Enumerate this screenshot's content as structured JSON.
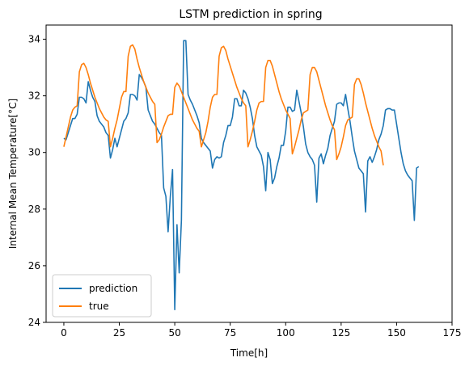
{
  "chart_data": {
    "type": "line",
    "title": "LSTM prediction in spring",
    "xlabel": "Time[h]",
    "ylabel": "Internal Mean Temperature[°C]",
    "xlim": [
      -8,
      175
    ],
    "ylim": [
      24,
      34.5
    ],
    "xticks": [
      0,
      25,
      50,
      75,
      100,
      125,
      150,
      175
    ],
    "yticks": [
      24,
      26,
      28,
      30,
      32,
      34
    ],
    "legend_position": "lower-left",
    "grid": false,
    "series": [
      {
        "name": "prediction",
        "color": "#1f77b4",
        "points": [
          [
            0,
            30.5
          ],
          [
            1,
            30.45
          ],
          [
            2,
            30.7
          ],
          [
            3,
            30.95
          ],
          [
            4,
            31.2
          ],
          [
            5,
            31.2
          ],
          [
            6,
            31.35
          ],
          [
            7,
            31.95
          ],
          [
            8,
            31.95
          ],
          [
            9,
            31.9
          ],
          [
            10,
            31.75
          ],
          [
            11,
            32.5
          ],
          [
            12,
            32.2
          ],
          [
            13,
            31.95
          ],
          [
            14,
            31.8
          ],
          [
            15,
            31.3
          ],
          [
            16,
            31.1
          ],
          [
            17,
            31.0
          ],
          [
            18,
            30.9
          ],
          [
            19,
            30.7
          ],
          [
            20,
            30.6
          ],
          [
            21,
            29.8
          ],
          [
            22,
            30.1
          ],
          [
            23,
            30.5
          ],
          [
            24,
            30.2
          ],
          [
            25,
            30.5
          ],
          [
            26,
            30.8
          ],
          [
            27,
            31.1
          ],
          [
            28,
            31.2
          ],
          [
            29,
            31.4
          ],
          [
            30,
            32.05
          ],
          [
            31,
            32.05
          ],
          [
            32,
            32.0
          ],
          [
            33,
            31.85
          ],
          [
            34,
            32.75
          ],
          [
            35,
            32.65
          ],
          [
            36,
            32.5
          ],
          [
            37,
            32.3
          ],
          [
            38,
            31.5
          ],
          [
            39,
            31.3
          ],
          [
            40,
            31.1
          ],
          [
            41,
            31.0
          ],
          [
            42,
            30.85
          ],
          [
            43,
            30.7
          ],
          [
            44,
            30.6
          ],
          [
            45,
            28.75
          ],
          [
            46,
            28.45
          ],
          [
            47,
            27.2
          ],
          [
            48,
            28.45
          ],
          [
            49,
            29.4
          ],
          [
            50,
            24.45
          ],
          [
            51,
            27.45
          ],
          [
            52,
            25.75
          ],
          [
            53,
            27.6
          ],
          [
            54,
            33.95
          ],
          [
            55,
            33.95
          ],
          [
            56,
            32.05
          ],
          [
            57,
            31.85
          ],
          [
            58,
            31.7
          ],
          [
            59,
            31.5
          ],
          [
            60,
            31.3
          ],
          [
            61,
            31.05
          ],
          [
            62,
            30.5
          ],
          [
            63,
            30.35
          ],
          [
            64,
            30.25
          ],
          [
            65,
            30.15
          ],
          [
            66,
            30.05
          ],
          [
            67,
            29.45
          ],
          [
            68,
            29.75
          ],
          [
            69,
            29.85
          ],
          [
            70,
            29.8
          ],
          [
            71,
            29.85
          ],
          [
            72,
            30.35
          ],
          [
            73,
            30.6
          ],
          [
            74,
            30.95
          ],
          [
            75,
            30.95
          ],
          [
            76,
            31.25
          ],
          [
            77,
            31.9
          ],
          [
            78,
            31.9
          ],
          [
            79,
            31.65
          ],
          [
            80,
            31.65
          ],
          [
            81,
            32.2
          ],
          [
            82,
            32.1
          ],
          [
            83,
            31.9
          ],
          [
            84,
            31.6
          ],
          [
            85,
            31.2
          ],
          [
            86,
            30.6
          ],
          [
            87,
            30.2
          ],
          [
            88,
            30.05
          ],
          [
            89,
            29.9
          ],
          [
            90,
            29.5
          ],
          [
            91,
            28.65
          ],
          [
            92,
            30.0
          ],
          [
            93,
            29.75
          ],
          [
            94,
            28.9
          ],
          [
            95,
            29.1
          ],
          [
            96,
            29.5
          ],
          [
            97,
            29.8
          ],
          [
            98,
            30.25
          ],
          [
            99,
            30.25
          ],
          [
            100,
            30.75
          ],
          [
            101,
            31.6
          ],
          [
            102,
            31.6
          ],
          [
            103,
            31.45
          ],
          [
            104,
            31.5
          ],
          [
            105,
            32.2
          ],
          [
            106,
            31.8
          ],
          [
            107,
            31.4
          ],
          [
            108,
            30.9
          ],
          [
            109,
            30.3
          ],
          [
            110,
            30.0
          ],
          [
            111,
            29.85
          ],
          [
            112,
            29.75
          ],
          [
            113,
            29.55
          ],
          [
            114,
            28.25
          ],
          [
            115,
            29.8
          ],
          [
            116,
            29.95
          ],
          [
            117,
            29.6
          ],
          [
            118,
            29.9
          ],
          [
            119,
            30.15
          ],
          [
            120,
            30.6
          ],
          [
            121,
            30.85
          ],
          [
            122,
            31.1
          ],
          [
            123,
            31.7
          ],
          [
            124,
            31.75
          ],
          [
            125,
            31.75
          ],
          [
            126,
            31.65
          ],
          [
            127,
            32.05
          ],
          [
            128,
            31.55
          ],
          [
            129,
            31.1
          ],
          [
            130,
            30.55
          ],
          [
            131,
            30.05
          ],
          [
            132,
            29.75
          ],
          [
            133,
            29.45
          ],
          [
            134,
            29.35
          ],
          [
            135,
            29.25
          ],
          [
            136,
            27.9
          ],
          [
            137,
            29.7
          ],
          [
            138,
            29.85
          ],
          [
            139,
            29.65
          ],
          [
            140,
            29.85
          ],
          [
            141,
            30.1
          ],
          [
            142,
            30.45
          ],
          [
            143,
            30.65
          ],
          [
            144,
            30.95
          ],
          [
            145,
            31.5
          ],
          [
            146,
            31.55
          ],
          [
            147,
            31.55
          ],
          [
            148,
            31.5
          ],
          [
            149,
            31.5
          ],
          [
            150,
            31.0
          ],
          [
            151,
            30.5
          ],
          [
            152,
            30.0
          ],
          [
            153,
            29.6
          ],
          [
            154,
            29.35
          ],
          [
            155,
            29.2
          ],
          [
            156,
            29.1
          ],
          [
            157,
            29.0
          ],
          [
            158,
            27.6
          ],
          [
            159,
            29.45
          ],
          [
            160,
            29.5
          ]
        ]
      },
      {
        "name": "true",
        "color": "#ff7f0e",
        "points": [
          [
            0,
            30.2
          ],
          [
            1,
            30.55
          ],
          [
            2,
            30.9
          ],
          [
            3,
            31.25
          ],
          [
            4,
            31.5
          ],
          [
            5,
            31.6
          ],
          [
            6,
            31.65
          ],
          [
            7,
            32.85
          ],
          [
            8,
            33.1
          ],
          [
            9,
            33.15
          ],
          [
            10,
            33.0
          ],
          [
            11,
            32.75
          ],
          [
            12,
            32.45
          ],
          [
            13,
            32.2
          ],
          [
            14,
            31.95
          ],
          [
            15,
            31.75
          ],
          [
            16,
            31.55
          ],
          [
            17,
            31.4
          ],
          [
            18,
            31.25
          ],
          [
            19,
            31.15
          ],
          [
            20,
            31.1
          ],
          [
            21,
            30.2
          ],
          [
            22,
            30.5
          ],
          [
            23,
            30.85
          ],
          [
            24,
            31.15
          ],
          [
            25,
            31.55
          ],
          [
            26,
            31.95
          ],
          [
            27,
            32.15
          ],
          [
            28,
            32.15
          ],
          [
            29,
            33.4
          ],
          [
            30,
            33.75
          ],
          [
            31,
            33.8
          ],
          [
            32,
            33.65
          ],
          [
            33,
            33.3
          ],
          [
            34,
            33.0
          ],
          [
            35,
            32.75
          ],
          [
            36,
            32.5
          ],
          [
            37,
            32.3
          ],
          [
            38,
            32.1
          ],
          [
            39,
            31.95
          ],
          [
            40,
            31.8
          ],
          [
            41,
            31.7
          ],
          [
            42,
            30.35
          ],
          [
            43,
            30.45
          ],
          [
            44,
            30.65
          ],
          [
            45,
            30.9
          ],
          [
            46,
            31.1
          ],
          [
            47,
            31.3
          ],
          [
            48,
            31.35
          ],
          [
            49,
            31.35
          ],
          [
            50,
            32.3
          ],
          [
            51,
            32.45
          ],
          [
            52,
            32.35
          ],
          [
            53,
            32.15
          ],
          [
            54,
            31.95
          ],
          [
            55,
            31.75
          ],
          [
            56,
            31.55
          ],
          [
            57,
            31.35
          ],
          [
            58,
            31.15
          ],
          [
            59,
            31.0
          ],
          [
            60,
            30.85
          ],
          [
            61,
            30.75
          ],
          [
            62,
            30.2
          ],
          [
            63,
            30.45
          ],
          [
            64,
            30.7
          ],
          [
            65,
            31.1
          ],
          [
            66,
            31.6
          ],
          [
            67,
            31.95
          ],
          [
            68,
            32.05
          ],
          [
            69,
            32.05
          ],
          [
            70,
            33.4
          ],
          [
            71,
            33.7
          ],
          [
            72,
            33.75
          ],
          [
            73,
            33.6
          ],
          [
            74,
            33.3
          ],
          [
            75,
            33.05
          ],
          [
            76,
            32.8
          ],
          [
            77,
            32.55
          ],
          [
            78,
            32.3
          ],
          [
            79,
            32.1
          ],
          [
            80,
            31.9
          ],
          [
            81,
            31.75
          ],
          [
            82,
            31.65
          ],
          [
            83,
            30.2
          ],
          [
            84,
            30.45
          ],
          [
            85,
            30.75
          ],
          [
            86,
            31.1
          ],
          [
            87,
            31.5
          ],
          [
            88,
            31.75
          ],
          [
            89,
            31.8
          ],
          [
            90,
            31.8
          ],
          [
            91,
            33.0
          ],
          [
            92,
            33.25
          ],
          [
            93,
            33.25
          ],
          [
            94,
            33.05
          ],
          [
            95,
            32.75
          ],
          [
            96,
            32.45
          ],
          [
            97,
            32.15
          ],
          [
            98,
            31.9
          ],
          [
            99,
            31.7
          ],
          [
            100,
            31.5
          ],
          [
            101,
            31.35
          ],
          [
            102,
            31.2
          ],
          [
            103,
            29.95
          ],
          [
            104,
            30.2
          ],
          [
            105,
            30.5
          ],
          [
            106,
            30.8
          ],
          [
            107,
            31.15
          ],
          [
            108,
            31.4
          ],
          [
            109,
            31.45
          ],
          [
            110,
            31.5
          ],
          [
            111,
            32.75
          ],
          [
            112,
            33.0
          ],
          [
            113,
            33.0
          ],
          [
            114,
            32.85
          ],
          [
            115,
            32.55
          ],
          [
            116,
            32.25
          ],
          [
            117,
            31.95
          ],
          [
            118,
            31.65
          ],
          [
            119,
            31.4
          ],
          [
            120,
            31.15
          ],
          [
            121,
            30.95
          ],
          [
            122,
            30.8
          ],
          [
            123,
            29.75
          ],
          [
            124,
            29.95
          ],
          [
            125,
            30.2
          ],
          [
            126,
            30.55
          ],
          [
            127,
            30.95
          ],
          [
            128,
            31.15
          ],
          [
            129,
            31.2
          ],
          [
            130,
            31.25
          ],
          [
            131,
            32.4
          ],
          [
            132,
            32.6
          ],
          [
            133,
            32.6
          ],
          [
            134,
            32.4
          ],
          [
            135,
            32.1
          ],
          [
            136,
            31.75
          ],
          [
            137,
            31.45
          ],
          [
            138,
            31.15
          ],
          [
            139,
            30.85
          ],
          [
            140,
            30.6
          ],
          [
            141,
            30.4
          ],
          [
            142,
            30.2
          ],
          [
            143,
            30.05
          ],
          [
            144,
            29.55
          ]
        ]
      }
    ]
  }
}
